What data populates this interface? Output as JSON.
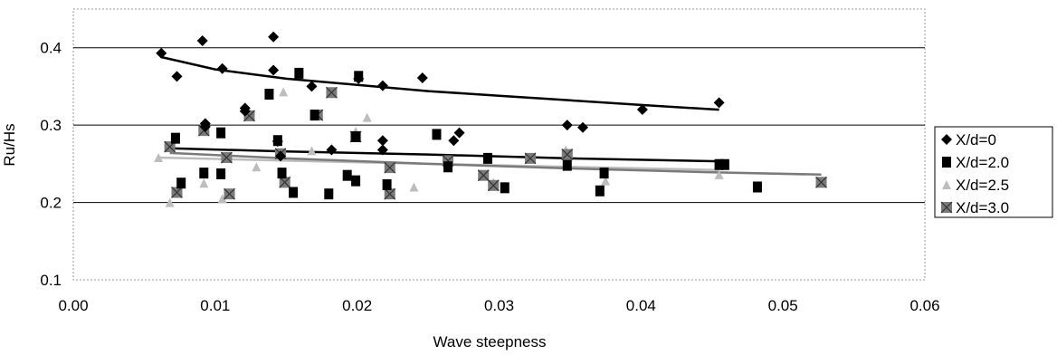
{
  "chart_data": {
    "type": "scatter",
    "xlabel": "Wave steepness",
    "ylabel": "Ru/Hs",
    "xlim": [
      0.0,
      0.06
    ],
    "ylim": [
      0.1,
      0.45
    ],
    "x_ticks": [
      "0.00",
      "0.01",
      "0.02",
      "0.03",
      "0.04",
      "0.05",
      "0.06"
    ],
    "x_tick_values": [
      0.0,
      0.01,
      0.02,
      0.03,
      0.04,
      0.05,
      0.06
    ],
    "y_ticks": [
      "0.1",
      "0.2",
      "0.3",
      "0.4"
    ],
    "y_tick_values": [
      0.1,
      0.2,
      0.3,
      0.4
    ],
    "grid": "horizontal",
    "legend_position": "right",
    "series": [
      {
        "name": "X/d=0",
        "marker": "diamond",
        "color": "#000000",
        "points": [
          [
            0.0062,
            0.393
          ],
          [
            0.0073,
            0.363
          ],
          [
            0.0091,
            0.409
          ],
          [
            0.0093,
            0.302
          ],
          [
            0.0093,
            0.298
          ],
          [
            0.0105,
            0.373
          ],
          [
            0.0121,
            0.322
          ],
          [
            0.0121,
            0.318
          ],
          [
            0.0141,
            0.414
          ],
          [
            0.0141,
            0.371
          ],
          [
            0.0144,
            0.279
          ],
          [
            0.0146,
            0.26
          ],
          [
            0.0168,
            0.35
          ],
          [
            0.0182,
            0.268
          ],
          [
            0.0201,
            0.36
          ],
          [
            0.0218,
            0.351
          ],
          [
            0.0218,
            0.28
          ],
          [
            0.0218,
            0.268
          ],
          [
            0.0246,
            0.361
          ],
          [
            0.0268,
            0.28
          ],
          [
            0.0272,
            0.29
          ],
          [
            0.0348,
            0.3
          ],
          [
            0.0359,
            0.297
          ],
          [
            0.0401,
            0.32
          ],
          [
            0.0455,
            0.329
          ]
        ],
        "trend": [
          [
            0.0062,
            0.388
          ],
          [
            0.01,
            0.372
          ],
          [
            0.015,
            0.36
          ],
          [
            0.02,
            0.352
          ],
          [
            0.025,
            0.344
          ],
          [
            0.03,
            0.338
          ],
          [
            0.035,
            0.332
          ],
          [
            0.04,
            0.326
          ],
          [
            0.0455,
            0.32
          ]
        ]
      },
      {
        "name": "X/d=2.0",
        "marker": "square",
        "color": "#000000",
        "points": [
          [
            0.0072,
            0.283
          ],
          [
            0.0076,
            0.225
          ],
          [
            0.0092,
            0.238
          ],
          [
            0.0104,
            0.29
          ],
          [
            0.0104,
            0.237
          ],
          [
            0.0138,
            0.34
          ],
          [
            0.0144,
            0.28
          ],
          [
            0.0147,
            0.238
          ],
          [
            0.0155,
            0.213
          ],
          [
            0.0159,
            0.367
          ],
          [
            0.017,
            0.313
          ],
          [
            0.018,
            0.211
          ],
          [
            0.0193,
            0.235
          ],
          [
            0.0201,
            0.363
          ],
          [
            0.0199,
            0.285
          ],
          [
            0.0199,
            0.228
          ],
          [
            0.0221,
            0.223
          ],
          [
            0.0256,
            0.288
          ],
          [
            0.0264,
            0.246
          ],
          [
            0.0292,
            0.257
          ],
          [
            0.0304,
            0.219
          ],
          [
            0.0348,
            0.248
          ],
          [
            0.0371,
            0.215
          ],
          [
            0.0374,
            0.238
          ],
          [
            0.0455,
            0.249
          ],
          [
            0.0459,
            0.249
          ],
          [
            0.0482,
            0.22
          ]
        ],
        "trend": [
          [
            0.0068,
            0.27
          ],
          [
            0.015,
            0.266
          ],
          [
            0.025,
            0.262
          ],
          [
            0.035,
            0.257
          ],
          [
            0.046,
            0.253
          ]
        ]
      },
      {
        "name": "X/d=2.5",
        "marker": "triangle",
        "color": "#bdbdbd",
        "points": [
          [
            0.006,
            0.258
          ],
          [
            0.0068,
            0.2
          ],
          [
            0.0092,
            0.225
          ],
          [
            0.0105,
            0.205
          ],
          [
            0.0129,
            0.246
          ],
          [
            0.0148,
            0.343
          ],
          [
            0.0168,
            0.267
          ],
          [
            0.0199,
            0.292
          ],
          [
            0.0207,
            0.31
          ],
          [
            0.024,
            0.22
          ],
          [
            0.0296,
            0.226
          ],
          [
            0.0347,
            0.268
          ],
          [
            0.0375,
            0.228
          ],
          [
            0.0455,
            0.236
          ]
        ],
        "trend": [
          [
            0.006,
            0.258
          ],
          [
            0.015,
            0.254
          ],
          [
            0.025,
            0.25
          ],
          [
            0.035,
            0.246
          ],
          [
            0.0455,
            0.242
          ]
        ]
      },
      {
        "name": "X/d=3.0",
        "marker": "square-x",
        "color": "#7a7a7a",
        "points": [
          [
            0.0068,
            0.272
          ],
          [
            0.0073,
            0.213
          ],
          [
            0.0092,
            0.293
          ],
          [
            0.0108,
            0.258
          ],
          [
            0.011,
            0.211
          ],
          [
            0.0124,
            0.312
          ],
          [
            0.0146,
            0.263
          ],
          [
            0.0149,
            0.226
          ],
          [
            0.0172,
            0.313
          ],
          [
            0.0182,
            0.342
          ],
          [
            0.0199,
            0.285
          ],
          [
            0.0223,
            0.245
          ],
          [
            0.0223,
            0.211
          ],
          [
            0.0264,
            0.254
          ],
          [
            0.0289,
            0.235
          ],
          [
            0.0296,
            0.222
          ],
          [
            0.0322,
            0.257
          ],
          [
            0.0348,
            0.262
          ],
          [
            0.0527,
            0.226
          ]
        ],
        "trend": [
          [
            0.0068,
            0.264
          ],
          [
            0.015,
            0.257
          ],
          [
            0.025,
            0.25
          ],
          [
            0.035,
            0.244
          ],
          [
            0.045,
            0.239
          ],
          [
            0.0527,
            0.236
          ]
        ]
      }
    ]
  }
}
